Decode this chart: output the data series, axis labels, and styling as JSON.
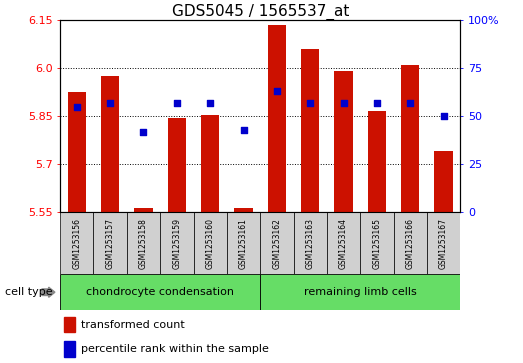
{
  "title": "GDS5045 / 1565537_at",
  "samples": [
    "GSM1253156",
    "GSM1253157",
    "GSM1253158",
    "GSM1253159",
    "GSM1253160",
    "GSM1253161",
    "GSM1253162",
    "GSM1253163",
    "GSM1253164",
    "GSM1253165",
    "GSM1253166",
    "GSM1253167"
  ],
  "bar_values": [
    5.925,
    5.975,
    5.565,
    5.845,
    5.855,
    5.565,
    6.135,
    6.06,
    5.99,
    5.865,
    6.01,
    5.74
  ],
  "dot_values_pct": [
    55,
    57,
    42,
    57,
    57,
    43,
    63,
    57,
    57,
    57,
    57,
    50
  ],
  "ylim_left": [
    5.55,
    6.15
  ],
  "ylim_right": [
    0,
    100
  ],
  "right_tick_labels": [
    "0",
    "25",
    "50",
    "75",
    "100%"
  ],
  "right_ticks": [
    0,
    25,
    50,
    75,
    100
  ],
  "left_ticks": [
    5.55,
    5.7,
    5.85,
    6.0,
    6.15
  ],
  "bar_color": "#cc1100",
  "dot_color": "#0000cc",
  "bar_bottom": 5.55,
  "group1_label": "chondrocyte condensation",
  "group2_label": "remaining limb cells",
  "group1_indices": [
    0,
    1,
    2,
    3,
    4,
    5
  ],
  "group2_indices": [
    6,
    7,
    8,
    9,
    10,
    11
  ],
  "cell_type_label": "cell type",
  "legend1": "transformed count",
  "legend2": "percentile rank within the sample",
  "bar_width": 0.55,
  "title_fontsize": 11,
  "tick_fontsize": 8,
  "sample_fontsize": 5.5,
  "group_fontsize": 8,
  "legend_fontsize": 8
}
